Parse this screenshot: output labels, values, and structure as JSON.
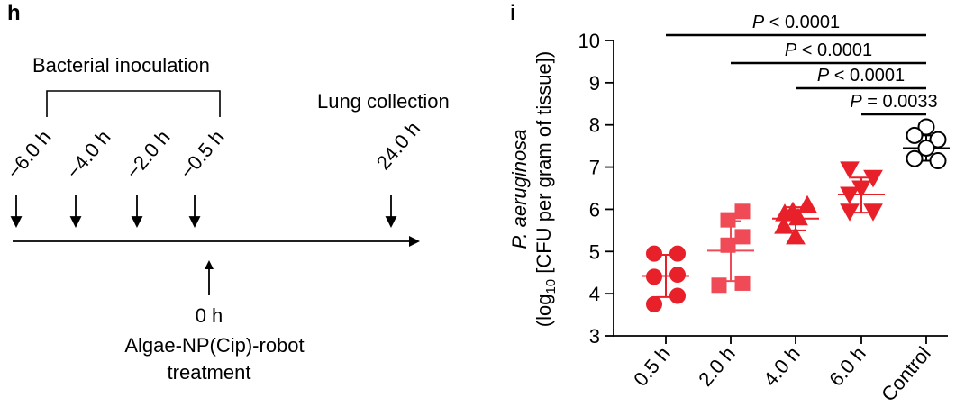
{
  "panel_h": {
    "label": "h",
    "bacterial_label": "Bacterial inoculation",
    "collection_label": "Lung collection",
    "times": [
      "−6.0 h",
      "−4.0 h",
      "−2.0 h",
      "−0.5 h",
      "24.0 h"
    ],
    "zero_label": "0 h",
    "treatment_line1": "Algae-NP(Cip)-robot",
    "treatment_line2": "treatment"
  },
  "chart_data": {
    "type": "scatter",
    "panel_label": "i",
    "categories": [
      "0.5 h",
      "2.0 h",
      "4.0 h",
      "6.0 h",
      "Control"
    ],
    "ylabel_line1": "P. aeruginosa",
    "ylabel_line2_pre": "(log",
    "ylabel_sub": "10",
    "ylabel_line2_post": " [CFU per gram of tissue])",
    "ylim": [
      3,
      10
    ],
    "yticks": [
      3,
      4,
      5,
      6,
      7,
      8,
      9,
      10
    ],
    "series": [
      {
        "category": "0.5 h",
        "marker": "circle",
        "filled": true,
        "color": "#e8202a",
        "points": [
          4.95,
          4.95,
          4.45,
          4.4,
          3.95,
          3.75
        ],
        "mean": 4.42,
        "sd_low": 3.92,
        "sd_high": 4.92
      },
      {
        "category": "2.0 h",
        "marker": "square",
        "filled": true,
        "color": "#ef4a56",
        "points": [
          5.95,
          5.75,
          5.35,
          5.15,
          4.25,
          4.2
        ],
        "mean": 5.02,
        "sd_low": 4.3,
        "sd_high": 5.72
      },
      {
        "category": "4.0 h",
        "marker": "triangle-up",
        "filled": true,
        "color": "#e8202a",
        "points": [
          6.1,
          5.95,
          5.9,
          5.8,
          5.6,
          5.35
        ],
        "mean": 5.78,
        "sd_low": 5.5,
        "sd_high": 6.05
      },
      {
        "category": "6.0 h",
        "marker": "triangle-down",
        "filled": true,
        "color": "#e8202a",
        "points": [
          6.95,
          6.75,
          6.5,
          6.35,
          5.95,
          5.95
        ],
        "mean": 6.35,
        "sd_low": 5.92,
        "sd_high": 6.75
      },
      {
        "category": "Control",
        "marker": "circle",
        "filled": false,
        "color": "#000000",
        "points": [
          7.95,
          7.75,
          7.65,
          7.45,
          7.2,
          7.15
        ],
        "mean": 7.45,
        "sd_low": 7.15,
        "sd_high": 7.75
      }
    ],
    "significance": [
      {
        "from": "0.5 h",
        "to": "Control",
        "label": "P < 0.0001"
      },
      {
        "from": "2.0 h",
        "to": "Control",
        "label": "P < 0.0001"
      },
      {
        "from": "4.0 h",
        "to": "Control",
        "label": "P < 0.0001"
      },
      {
        "from": "6.0 h",
        "to": "Control",
        "label": "P = 0.0033"
      }
    ]
  }
}
